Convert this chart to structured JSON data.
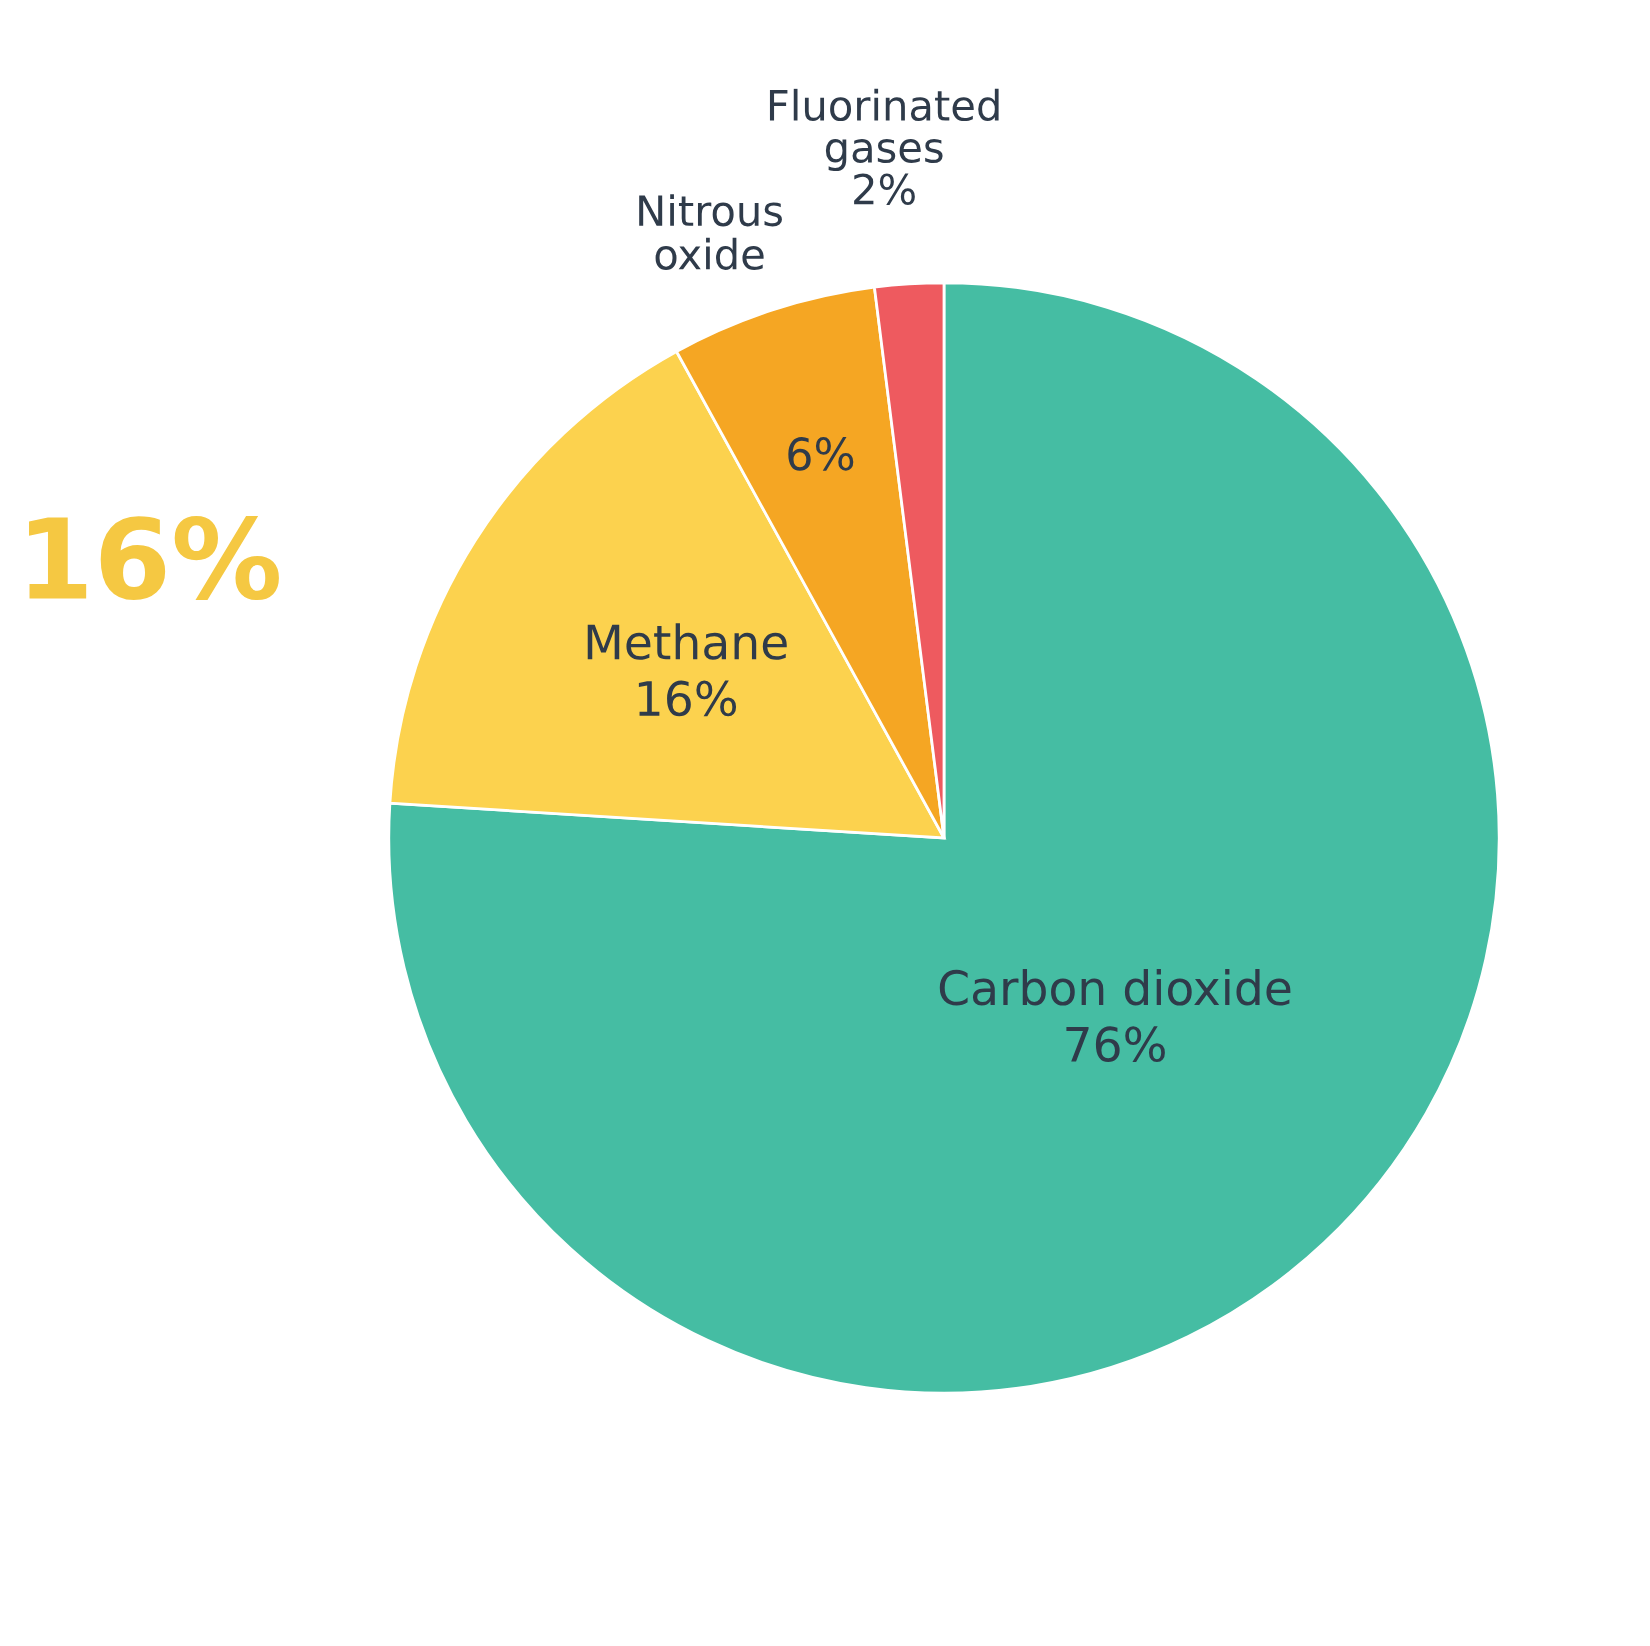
{
  "chart_data": {
    "type": "pie",
    "categories": [
      "Carbon dioxide",
      "Methane",
      "Nitrous oxide",
      "Fluorinated gases"
    ],
    "values": [
      76,
      16,
      6,
      2
    ],
    "colors": [
      "#45bda3",
      "#fcd24e",
      "#f5a623",
      "#ee5a5f"
    ],
    "value_labels": [
      "76%",
      "16%",
      "6%",
      "2%"
    ],
    "annotations": [
      "16%"
    ]
  }
}
